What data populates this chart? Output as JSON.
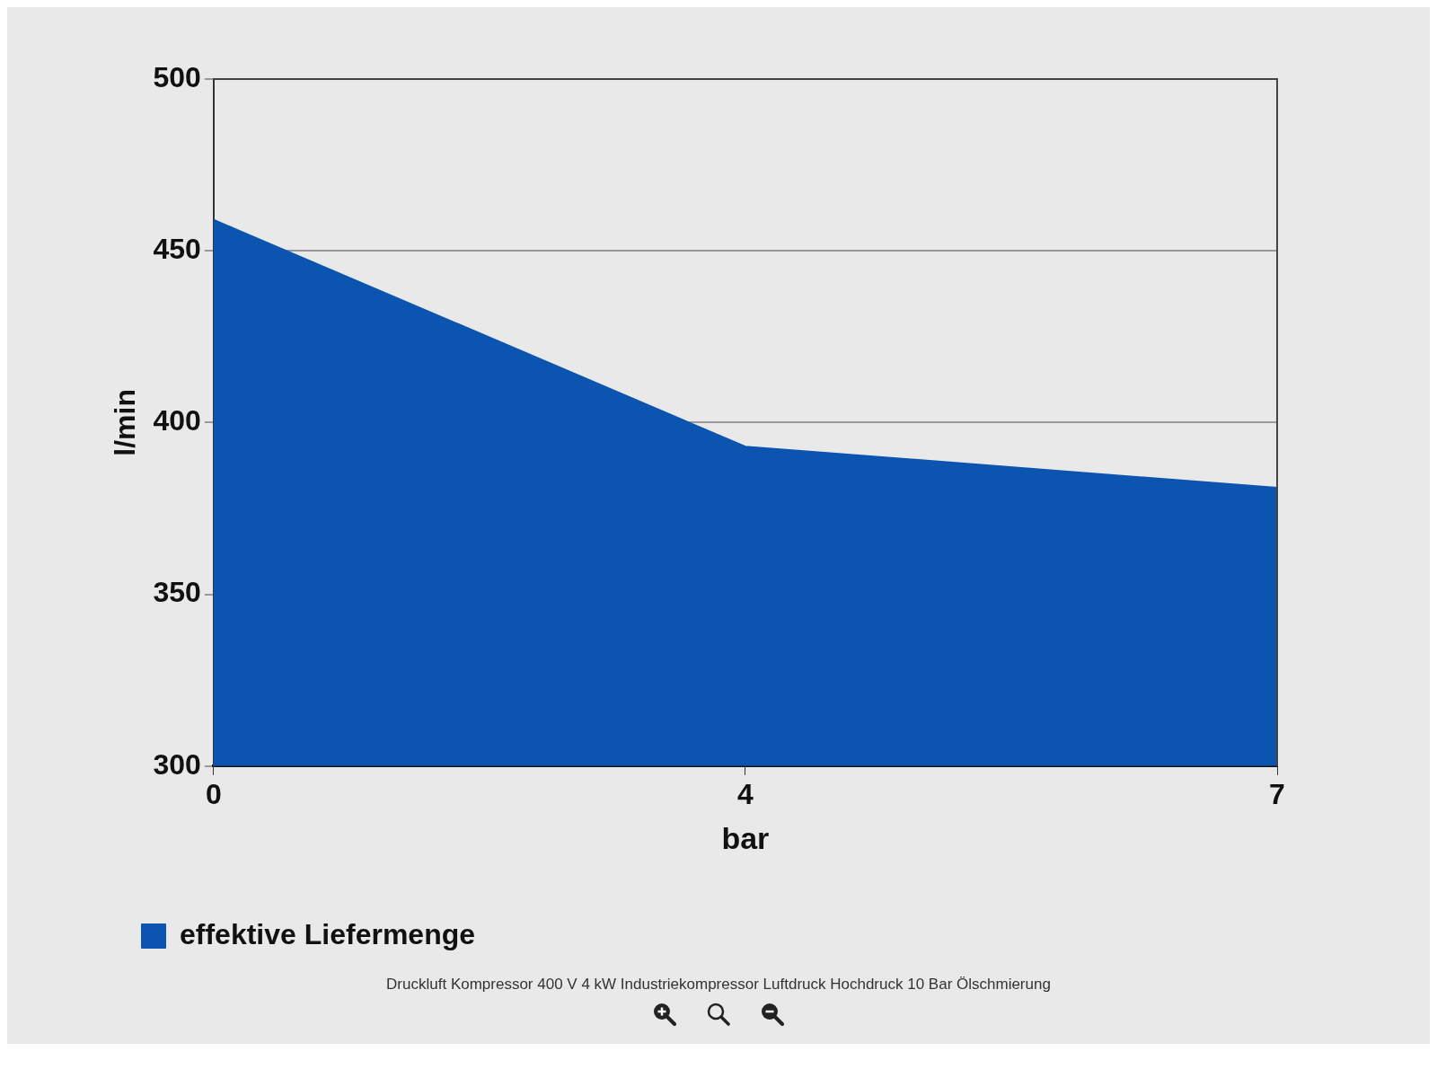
{
  "chart_data": {
    "type": "area",
    "categories": [
      "0",
      "4",
      "7"
    ],
    "series": [
      {
        "name": "effektive Liefermenge",
        "color": "#0b55b0",
        "values": [
          459,
          393,
          381
        ]
      }
    ],
    "xlabel": "bar",
    "ylabel": "l/min",
    "ylim": [
      300,
      500
    ],
    "yticks": [
      300,
      350,
      400,
      450,
      500
    ],
    "grid": "y",
    "legend": "bottom left",
    "annotations": [
      "Druckluft Kompressor 400 V 4 kW Industriekompressor Luftdruck Hochdruck 10 Bar Ölschmierung"
    ]
  }
}
